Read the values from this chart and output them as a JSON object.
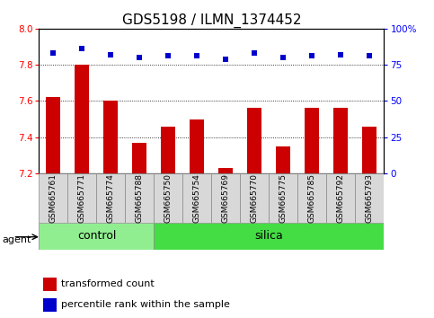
{
  "title": "GDS5198 / ILMN_1374452",
  "samples": [
    "GSM665761",
    "GSM665771",
    "GSM665774",
    "GSM665788",
    "GSM665750",
    "GSM665754",
    "GSM665769",
    "GSM665770",
    "GSM665775",
    "GSM665785",
    "GSM665792",
    "GSM665793"
  ],
  "groups": [
    "control",
    "control",
    "control",
    "control",
    "silica",
    "silica",
    "silica",
    "silica",
    "silica",
    "silica",
    "silica",
    "silica"
  ],
  "transformed_count": [
    7.62,
    7.8,
    7.6,
    7.37,
    7.46,
    7.5,
    7.23,
    7.56,
    7.35,
    7.56,
    7.56,
    7.46
  ],
  "percentile_rank": [
    83,
    86,
    82,
    80,
    81,
    81,
    79,
    83,
    80,
    81,
    82,
    81
  ],
  "ylim_left": [
    7.2,
    8.0
  ],
  "ylim_right": [
    0,
    100
  ],
  "yticks_left": [
    7.2,
    7.4,
    7.6,
    7.8,
    8.0
  ],
  "yticks_right": [
    0,
    25,
    50,
    75,
    100
  ],
  "bar_color": "#cc0000",
  "dot_color": "#0000cc",
  "control_color": "#90ee90",
  "silica_color": "#44dd44",
  "xticklabel_bg": "#d8d8d8",
  "grid_color": "#000000",
  "bar_width": 0.5,
  "bar_bottom": 7.2,
  "legend_items": [
    "transformed count",
    "percentile rank within the sample"
  ],
  "agent_label": "agent",
  "group_labels": [
    "control",
    "silica"
  ],
  "n_control": 4,
  "title_fontsize": 11,
  "tick_fontsize": 7.5,
  "legend_fontsize": 8,
  "group_fontsize": 9
}
